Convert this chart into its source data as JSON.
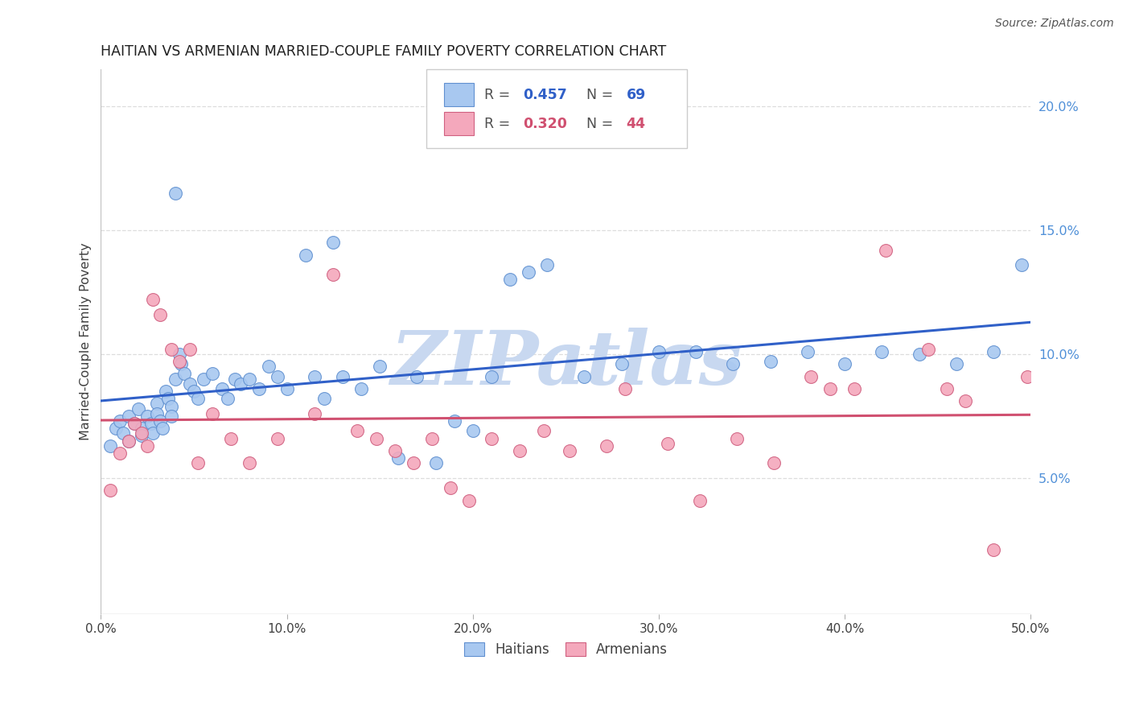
{
  "title": "HAITIAN VS ARMENIAN MARRIED-COUPLE FAMILY POVERTY CORRELATION CHART",
  "source": "Source: ZipAtlas.com",
  "ylabel": "Married-Couple Family Poverty",
  "xlim": [
    0.0,
    0.5
  ],
  "ylim": [
    -0.005,
    0.215
  ],
  "xticks": [
    0.0,
    0.1,
    0.2,
    0.3,
    0.4,
    0.5
  ],
  "yticks_right": [
    0.05,
    0.1,
    0.15,
    0.2
  ],
  "ytick_labels_right": [
    "5.0%",
    "10.0%",
    "15.0%",
    "20.0%"
  ],
  "xtick_labels": [
    "0.0%",
    "10.0%",
    "20.0%",
    "30.0%",
    "40.0%",
    "50.0%"
  ],
  "legend_r1": "0.457",
  "legend_n1": "69",
  "legend_r2": "0.320",
  "legend_n2": "44",
  "haitian_color": "#A8C8F0",
  "armenian_color": "#F4A8BC",
  "haitian_edge_color": "#6090D0",
  "armenian_edge_color": "#D06080",
  "haitian_line_color": "#3060C8",
  "armenian_line_color": "#D05070",
  "watermark": "ZIPatlas",
  "watermark_color": "#C8D8F0",
  "background_color": "#FFFFFF",
  "grid_color": "#DDDDDD",
  "title_color": "#202020",
  "axis_label_color": "#404040",
  "right_axis_color": "#5090D8",
  "haitian_x": [
    0.005,
    0.008,
    0.01,
    0.012,
    0.015,
    0.015,
    0.018,
    0.02,
    0.022,
    0.022,
    0.025,
    0.027,
    0.028,
    0.03,
    0.03,
    0.032,
    0.033,
    0.035,
    0.036,
    0.038,
    0.038,
    0.04,
    0.04,
    0.042,
    0.043,
    0.045,
    0.048,
    0.05,
    0.052,
    0.055,
    0.06,
    0.065,
    0.068,
    0.072,
    0.075,
    0.08,
    0.085,
    0.09,
    0.095,
    0.1,
    0.11,
    0.115,
    0.12,
    0.125,
    0.13,
    0.14,
    0.15,
    0.16,
    0.17,
    0.18,
    0.19,
    0.2,
    0.21,
    0.22,
    0.23,
    0.24,
    0.26,
    0.28,
    0.3,
    0.32,
    0.34,
    0.36,
    0.38,
    0.4,
    0.42,
    0.44,
    0.46,
    0.48,
    0.495
  ],
  "haitian_y": [
    0.063,
    0.07,
    0.073,
    0.068,
    0.075,
    0.065,
    0.072,
    0.078,
    0.07,
    0.067,
    0.075,
    0.072,
    0.068,
    0.08,
    0.076,
    0.073,
    0.07,
    0.085,
    0.082,
    0.079,
    0.075,
    0.09,
    0.165,
    0.1,
    0.096,
    0.092,
    0.088,
    0.085,
    0.082,
    0.09,
    0.092,
    0.086,
    0.082,
    0.09,
    0.088,
    0.09,
    0.086,
    0.095,
    0.091,
    0.086,
    0.14,
    0.091,
    0.082,
    0.145,
    0.091,
    0.086,
    0.095,
    0.058,
    0.091,
    0.056,
    0.073,
    0.069,
    0.091,
    0.13,
    0.133,
    0.136,
    0.091,
    0.096,
    0.101,
    0.101,
    0.096,
    0.097,
    0.101,
    0.096,
    0.101,
    0.1,
    0.096,
    0.101,
    0.136
  ],
  "armenian_x": [
    0.005,
    0.01,
    0.015,
    0.018,
    0.022,
    0.025,
    0.028,
    0.032,
    0.038,
    0.042,
    0.048,
    0.052,
    0.06,
    0.07,
    0.08,
    0.095,
    0.115,
    0.125,
    0.138,
    0.148,
    0.158,
    0.168,
    0.178,
    0.188,
    0.198,
    0.21,
    0.225,
    0.238,
    0.252,
    0.272,
    0.282,
    0.305,
    0.322,
    0.342,
    0.362,
    0.382,
    0.392,
    0.405,
    0.422,
    0.445,
    0.455,
    0.465,
    0.48,
    0.498
  ],
  "armenian_y": [
    0.045,
    0.06,
    0.065,
    0.072,
    0.068,
    0.063,
    0.122,
    0.116,
    0.102,
    0.097,
    0.102,
    0.056,
    0.076,
    0.066,
    0.056,
    0.066,
    0.076,
    0.132,
    0.069,
    0.066,
    0.061,
    0.056,
    0.066,
    0.046,
    0.041,
    0.066,
    0.061,
    0.069,
    0.061,
    0.063,
    0.086,
    0.064,
    0.041,
    0.066,
    0.056,
    0.091,
    0.086,
    0.086,
    0.142,
    0.102,
    0.086,
    0.081,
    0.021,
    0.091
  ]
}
